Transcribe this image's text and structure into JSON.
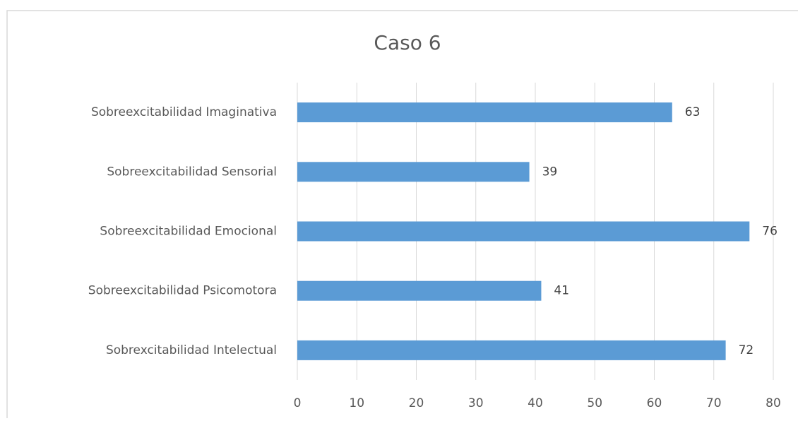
{
  "chart_data": {
    "type": "bar",
    "orientation": "horizontal",
    "title": "Caso 6",
    "categories": [
      "Sobreexcitabilidad Imaginativa",
      "Sobreexcitabilidad Sensorial",
      "Sobreexcitabilidad Emocional",
      "Sobreexcitabilidad Psicomotora",
      "Sobrexcitabilidad Intelectual"
    ],
    "values": [
      63,
      39,
      76,
      41,
      72
    ],
    "color": "#5b9bd5",
    "xlim": [
      0,
      80
    ],
    "xticks": [
      0,
      10,
      20,
      30,
      40,
      50,
      60,
      70,
      80
    ],
    "grid": true
  }
}
